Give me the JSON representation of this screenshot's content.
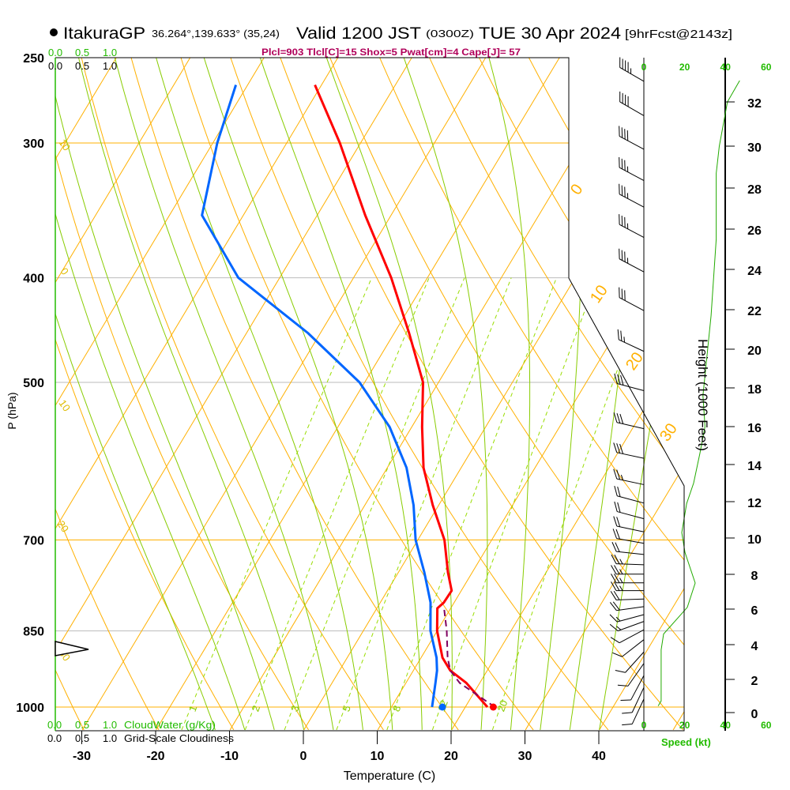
{
  "header": {
    "station": "ItakuraGP",
    "coords": "36.264°,139.633° (35,24)",
    "valid": "Valid 1200 JST",
    "utc": "(0300Z)",
    "date": "TUE 30 Apr 2024",
    "forecast": "[9hrFcst@2143z]",
    "stats": "Plcl=903 Tlcl[C]=15 Shox=5 Pwat[cm]=4 Cape[J]= 57"
  },
  "cloud_panel": {
    "cloudwater_ticks": [
      "0.0",
      "0.5",
      "1.0"
    ],
    "cloudiness_ticks": [
      "0.0",
      "0.5",
      "1.0"
    ],
    "cloudwater_label": "CloudWater (g/Kg)",
    "cloudiness_label": "Grid-Scale Cloudiness"
  },
  "chart_data": {
    "type": "skew-t",
    "title": "Valid 1200 JST (0300Z) TUE 30 Apr 2024",
    "xlabel": "Temperature (C)",
    "ylabel": "P (hPa)",
    "pressure_ticks": [
      "250",
      "300",
      "400",
      "500",
      "700",
      "850",
      "1000"
    ],
    "temperature_ticks": [
      "-30",
      "-20",
      "-10",
      "0",
      "10",
      "20",
      "30",
      "40"
    ],
    "ylim_hpa": [
      1000,
      250
    ],
    "series": [
      {
        "name": "temperature",
        "color": "#ff0000",
        "p": [
          1000,
          950,
          925,
          900,
          850,
          810,
          800,
          780,
          750,
          700,
          650,
          600,
          550,
          500,
          450,
          400,
          350,
          300,
          265
        ],
        "t": [
          23.0,
          18.2,
          15.0,
          12.9,
          10.0,
          8.2,
          8.6,
          8.7,
          6.7,
          3.6,
          -0.8,
          -5.1,
          -8.6,
          -12.1,
          -18.0,
          -24.9,
          -33.5,
          -42.8,
          -50.9
        ]
      },
      {
        "name": "dewpoint",
        "color": "#0066ff",
        "p": [
          1000,
          950,
          925,
          900,
          850,
          800,
          750,
          700,
          650,
          600,
          550,
          500,
          450,
          400,
          350,
          300,
          265
        ],
        "t": [
          15.5,
          14.0,
          13.2,
          12.1,
          9.1,
          6.8,
          3.5,
          -0.3,
          -3.4,
          -7.4,
          -13.0,
          -20.7,
          -31.7,
          -45.6,
          -55.6,
          -59.4,
          -61.6
        ]
      },
      {
        "name": "parcel",
        "color": "#800060",
        "p": [
          1000,
          950,
          925,
          900,
          850,
          810
        ],
        "t": [
          24.0,
          17.3,
          15.0,
          13.6,
          11.3,
          9.1
        ]
      }
    ],
    "surface": {
      "temperature": 24.0,
      "dewpoint": 16.9,
      "pressure": 1000
    },
    "winds": [
      {
        "p": 263,
        "dir": 300,
        "spd": 45
      },
      {
        "p": 283,
        "dir": 300,
        "spd": 40
      },
      {
        "p": 304,
        "dir": 298,
        "spd": 40
      },
      {
        "p": 325,
        "dir": 298,
        "spd": 35
      },
      {
        "p": 344,
        "dir": 298,
        "spd": 35
      },
      {
        "p": 367,
        "dir": 298,
        "spd": 35
      },
      {
        "p": 395,
        "dir": 298,
        "spd": 35
      },
      {
        "p": 429,
        "dir": 298,
        "spd": 30
      },
      {
        "p": 468,
        "dir": 295,
        "spd": 25
      },
      {
        "p": 509,
        "dir": 285,
        "spd": 30
      },
      {
        "p": 552,
        "dir": 283,
        "spd": 30
      },
      {
        "p": 588,
        "dir": 282,
        "spd": 30
      },
      {
        "p": 622,
        "dir": 282,
        "spd": 25
      },
      {
        "p": 647,
        "dir": 285,
        "spd": 20
      },
      {
        "p": 669,
        "dir": 285,
        "spd": 20
      },
      {
        "p": 688,
        "dir": 282,
        "spd": 20
      },
      {
        "p": 705,
        "dir": 280,
        "spd": 20
      },
      {
        "p": 722,
        "dir": 276,
        "spd": 20
      },
      {
        "p": 738,
        "dir": 272,
        "spd": 25
      },
      {
        "p": 753,
        "dir": 270,
        "spd": 25
      },
      {
        "p": 767,
        "dir": 270,
        "spd": 25
      },
      {
        "p": 780,
        "dir": 270,
        "spd": 25
      },
      {
        "p": 794,
        "dir": 268,
        "spd": 20
      },
      {
        "p": 807,
        "dir": 262,
        "spd": 20
      },
      {
        "p": 821,
        "dir": 255,
        "spd": 15
      },
      {
        "p": 833,
        "dir": 250,
        "spd": 15
      },
      {
        "p": 848,
        "dir": 242,
        "spd": 10
      },
      {
        "p": 866,
        "dir": 232,
        "spd": 10
      },
      {
        "p": 889,
        "dir": 222,
        "spd": 10
      },
      {
        "p": 911,
        "dir": 215,
        "spd": 10
      },
      {
        "p": 935,
        "dir": 208,
        "spd": 10
      },
      {
        "p": 959,
        "dir": 205,
        "spd": 10
      },
      {
        "p": 983,
        "dir": 205,
        "spd": 10
      }
    ],
    "speed_profile": {
      "height_kft": [
        0.4,
        0.7,
        3.7,
        4.6,
        6.1,
        7.5,
        9.2,
        10.3,
        11.9,
        13.0,
        14.6,
        16.0,
        17.6,
        21.7,
        25.5,
        28.7,
        30.0,
        32.0,
        33.0
      ],
      "speed_kt": [
        7,
        8.5,
        8.5,
        9.7,
        21.3,
        25.2,
        20.2,
        18.6,
        21,
        24.4,
        27.5,
        30,
        29,
        33,
        35.5,
        35.5,
        37,
        41,
        47
      ]
    },
    "height_ticks": [
      "0",
      "2",
      "4",
      "6",
      "8",
      "10",
      "12",
      "14",
      "16",
      "18",
      "20",
      "22",
      "24",
      "26",
      "28",
      "30",
      "32"
    ],
    "height_label": "Height (1000 Feet)",
    "speed_ticks": [
      "0",
      "20",
      "40",
      "60"
    ],
    "speed_label": "Speed (kt)",
    "mixing_ratio_labels": [
      "1",
      "2",
      "3",
      "5",
      "8",
      "12",
      "20"
    ],
    "isotherm_labels": [
      "0",
      "10",
      "20",
      "30"
    ],
    "left_labels": [
      "10",
      "0",
      "10",
      "20",
      "30"
    ]
  }
}
